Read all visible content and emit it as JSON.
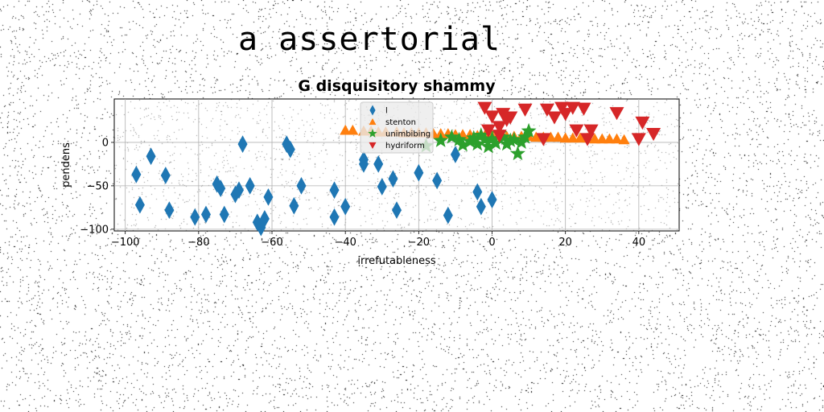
{
  "heading": "a assertorial",
  "chart_data": {
    "type": "scatter",
    "title": "G disquisitory shammy",
    "xlabel": "irrefutableness",
    "ylabel": "pendens",
    "xlim": [
      -103,
      51
    ],
    "ylim": [
      -102,
      50
    ],
    "xticks": [
      -100,
      -80,
      -60,
      -40,
      -20,
      0,
      20,
      40
    ],
    "yticks": [
      -100,
      -50,
      0
    ],
    "grid": true,
    "legend_position": "top-center",
    "series": [
      {
        "name": "l",
        "marker": "diamond",
        "color": "#1f77b4",
        "points": [
          [
            -97,
            -37
          ],
          [
            -96,
            -72
          ],
          [
            -93,
            -16
          ],
          [
            -89,
            -38
          ],
          [
            -88,
            -78
          ],
          [
            -81,
            -86
          ],
          [
            -78,
            -83
          ],
          [
            -75,
            -48
          ],
          [
            -74,
            -53
          ],
          [
            -73,
            -83
          ],
          [
            -70,
            -60
          ],
          [
            -69,
            -55
          ],
          [
            -68,
            -2
          ],
          [
            -66,
            -50
          ],
          [
            -64,
            -92
          ],
          [
            -63,
            -98
          ],
          [
            -62,
            -88
          ],
          [
            -61,
            -63
          ],
          [
            -56,
            -2
          ],
          [
            -55,
            -8
          ],
          [
            -54,
            -73
          ],
          [
            -52,
            -50
          ],
          [
            -43,
            -55
          ],
          [
            -43,
            -86
          ],
          [
            -40,
            -74
          ],
          [
            -35,
            -25
          ],
          [
            -35,
            -20
          ],
          [
            -31,
            -25
          ],
          [
            -30,
            -51
          ],
          [
            -27,
            -42
          ],
          [
            -26,
            -78
          ],
          [
            -20,
            -35
          ],
          [
            -15,
            -44
          ],
          [
            -12,
            -84
          ],
          [
            -10,
            -14
          ],
          [
            -4,
            -57
          ],
          [
            -3,
            -74
          ],
          [
            0,
            -66
          ]
        ]
      },
      {
        "name": "stenton",
        "marker": "triangle-up",
        "color": "#ff7f0e",
        "points": [
          [
            -40,
            14
          ],
          [
            -38,
            14
          ],
          [
            -35,
            13
          ],
          [
            -33,
            13
          ],
          [
            -31,
            12
          ],
          [
            -29,
            12
          ],
          [
            -26,
            12
          ],
          [
            -24,
            11
          ],
          [
            -22,
            11
          ],
          [
            -20,
            11
          ],
          [
            -18,
            11
          ],
          [
            -16,
            10
          ],
          [
            -14,
            10
          ],
          [
            -12,
            10
          ],
          [
            -10,
            9
          ],
          [
            -8,
            9
          ],
          [
            -6,
            9
          ],
          [
            -4,
            8
          ],
          [
            -2,
            8
          ],
          [
            0,
            8
          ],
          [
            2,
            8
          ],
          [
            4,
            7
          ],
          [
            6,
            7
          ],
          [
            8,
            7
          ],
          [
            10,
            7
          ],
          [
            12,
            6
          ],
          [
            14,
            6
          ],
          [
            16,
            6
          ],
          [
            18,
            6
          ],
          [
            20,
            5
          ],
          [
            22,
            5
          ],
          [
            24,
            5
          ],
          [
            26,
            5
          ],
          [
            28,
            4
          ],
          [
            30,
            4
          ],
          [
            32,
            4
          ],
          [
            34,
            4
          ],
          [
            36,
            3
          ]
        ]
      },
      {
        "name": "unimbibing",
        "marker": "star",
        "color": "#2ca02c",
        "points": [
          [
            -18,
            -4
          ],
          [
            -14,
            2
          ],
          [
            -11,
            6
          ],
          [
            -9,
            3
          ],
          [
            -8,
            -3
          ],
          [
            -6,
            1
          ],
          [
            -5,
            5
          ],
          [
            -4,
            -2
          ],
          [
            -3,
            8
          ],
          [
            -2,
            3
          ],
          [
            -1,
            -5
          ],
          [
            0,
            4
          ],
          [
            1,
            -1
          ],
          [
            2,
            10
          ],
          [
            3,
            6
          ],
          [
            4,
            -2
          ],
          [
            5,
            2
          ],
          [
            6,
            3
          ],
          [
            7,
            -13
          ],
          [
            8,
            0
          ],
          [
            9,
            6
          ],
          [
            10,
            13
          ]
        ]
      },
      {
        "name": "hydriform",
        "marker": "triangle-down",
        "color": "#d62728",
        "points": [
          [
            -2,
            40
          ],
          [
            -1,
            14
          ],
          [
            0,
            30
          ],
          [
            2,
            18
          ],
          [
            3,
            33
          ],
          [
            4,
            26
          ],
          [
            5,
            29
          ],
          [
            9,
            38
          ],
          [
            15,
            38
          ],
          [
            17,
            29
          ],
          [
            19,
            40
          ],
          [
            20,
            33
          ],
          [
            22,
            40
          ],
          [
            23,
            14
          ],
          [
            25,
            39
          ],
          [
            26,
            4
          ],
          [
            27,
            14
          ],
          [
            34,
            34
          ],
          [
            40,
            4
          ],
          [
            41,
            23
          ],
          [
            44,
            10
          ],
          [
            14,
            4
          ],
          [
            2,
            8
          ]
        ]
      }
    ]
  }
}
